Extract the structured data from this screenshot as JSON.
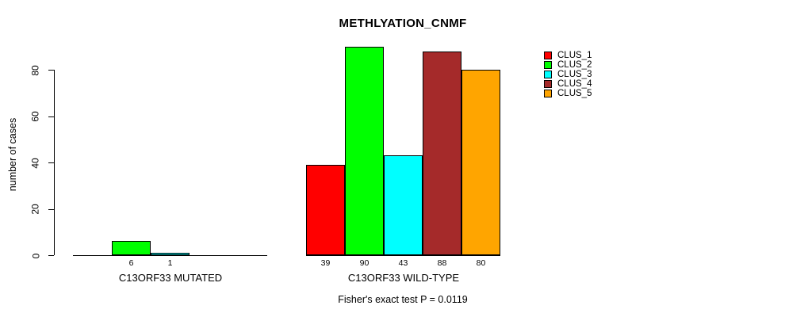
{
  "chart_data": {
    "type": "bar",
    "title": "METHLYATION_CNMF",
    "ylabel": "number of cases",
    "ylim": [
      0,
      90
    ],
    "yticks": [
      0,
      20,
      40,
      60,
      80
    ],
    "grid": false,
    "legend_position": "right",
    "clusters": [
      {
        "name": "CLUS_1",
        "color": "#FF0000"
      },
      {
        "name": "CLUS_2",
        "color": "#00FF00"
      },
      {
        "name": "CLUS_3",
        "color": "#00FFFF"
      },
      {
        "name": "CLUS_4",
        "color": "#A52A2A"
      },
      {
        "name": "CLUS_5",
        "color": "#FFA500"
      }
    ],
    "groups": [
      {
        "label": "C13ORF33 MUTATED",
        "bars": [
          {
            "cluster": "CLUS_2",
            "slot": 1,
            "value": 6,
            "color": "#00FF00"
          },
          {
            "cluster": "CLUS_3",
            "slot": 2,
            "value": 1,
            "color": "#00FFFF"
          }
        ]
      },
      {
        "label": "C13ORF33 WILD-TYPE",
        "bars": [
          {
            "cluster": "CLUS_1",
            "slot": 0,
            "value": 39,
            "color": "#FF0000"
          },
          {
            "cluster": "CLUS_2",
            "slot": 1,
            "value": 90,
            "color": "#00FF00"
          },
          {
            "cluster": "CLUS_3",
            "slot": 2,
            "value": 43,
            "color": "#00FFFF"
          },
          {
            "cluster": "CLUS_4",
            "slot": 3,
            "value": 88,
            "color": "#A52A2A"
          },
          {
            "cluster": "CLUS_5",
            "slot": 4,
            "value": 80,
            "color": "#FFA500"
          }
        ]
      }
    ],
    "footnote": "Fisher's exact test P = 0.0119"
  }
}
